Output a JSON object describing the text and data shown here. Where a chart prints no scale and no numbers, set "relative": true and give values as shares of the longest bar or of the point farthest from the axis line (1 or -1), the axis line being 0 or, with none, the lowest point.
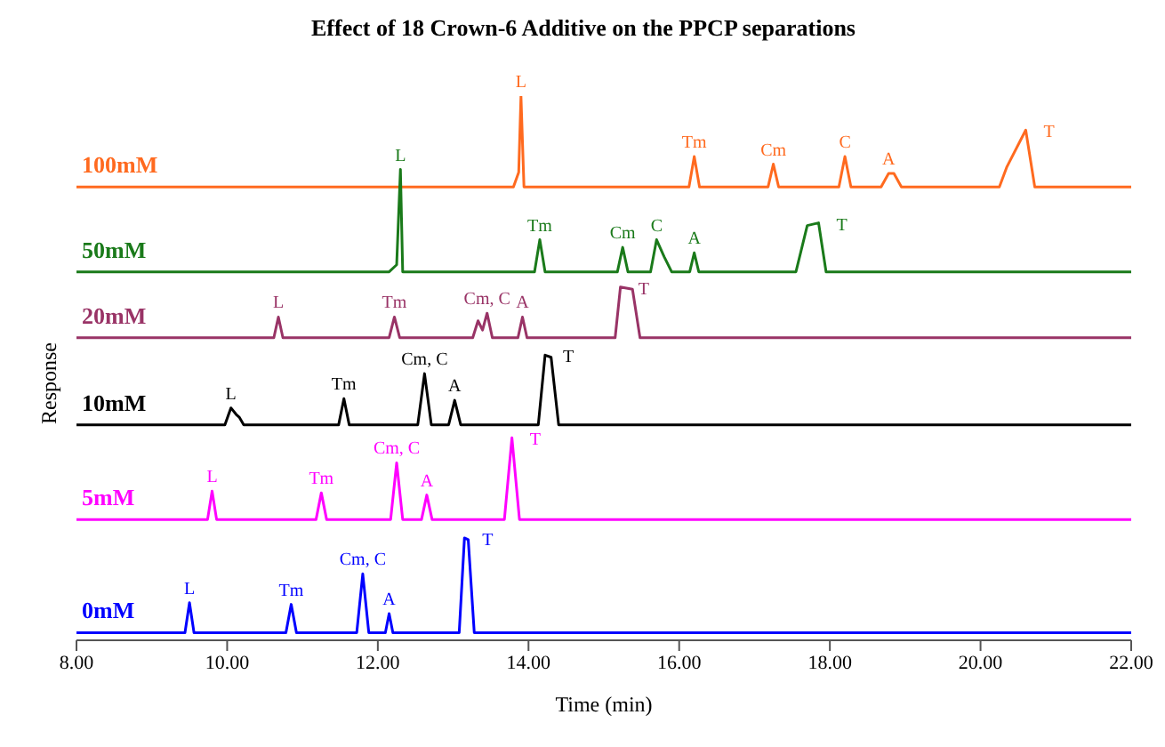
{
  "chart_data": {
    "type": "line",
    "title": "Effect of 18 Crown-6 Additive  on the PPCP separations",
    "xlabel": "Time (min)",
    "ylabel": "Response",
    "relative": true,
    "grid": false,
    "marker": "none",
    "line_style": "solid",
    "xlim": [
      8,
      22
    ],
    "xticks": [
      {
        "value": 8,
        "label": "8.00"
      },
      {
        "value": 10,
        "label": "10.00"
      },
      {
        "value": 12,
        "label": "12.00"
      },
      {
        "value": 14,
        "label": "14.00"
      },
      {
        "value": 16,
        "label": "16.00"
      },
      {
        "value": 18,
        "label": "18.00"
      },
      {
        "value": 20,
        "label": "20.00"
      },
      {
        "value": 22,
        "label": "22.00"
      }
    ],
    "series": [
      {
        "name": "100mM",
        "color": "#ff6a1f",
        "x": [
          8,
          13.8,
          13.87,
          13.9,
          13.94,
          16.13,
          16.2,
          16.27,
          17.18,
          17.25,
          17.32,
          18.12,
          18.2,
          18.28,
          18.68,
          18.78,
          18.85,
          18.95,
          20.25,
          20.35,
          20.6,
          20.72,
          22
        ],
        "values": [
          0.833,
          0.833,
          0.86,
          1,
          0.833,
          0.833,
          0.889,
          0.833,
          0.833,
          0.875,
          0.833,
          0.833,
          0.889,
          0.833,
          0.833,
          0.858,
          0.858,
          0.833,
          0.833,
          0.87,
          0.9375,
          0.833,
          0.833
        ]
      },
      {
        "name": "50mM",
        "color": "#1a7a1a",
        "x": [
          8,
          12.15,
          12.25,
          12.3,
          12.33,
          14.08,
          14.15,
          14.22,
          15.18,
          15.25,
          15.32,
          15.62,
          15.7,
          15.8,
          15.9,
          16.14,
          16.2,
          16.26,
          17.55,
          17.7,
          17.85,
          17.95,
          22
        ],
        "values": [
          0.677,
          0.677,
          0.69,
          0.865,
          0.677,
          0.677,
          0.736,
          0.677,
          0.677,
          0.722,
          0.677,
          0.677,
          0.736,
          0.705,
          0.677,
          0.677,
          0.712,
          0.677,
          0.677,
          0.762,
          0.767,
          0.677,
          0.677
        ]
      },
      {
        "name": "20mM",
        "color": "#993366",
        "x": [
          8,
          10.62,
          10.68,
          10.74,
          12.15,
          12.22,
          12.29,
          13.26,
          13.33,
          13.39,
          13.45,
          13.52,
          13.86,
          13.92,
          13.98,
          15.15,
          15.22,
          15.38,
          15.48,
          22
        ],
        "values": [
          0.556,
          0.556,
          0.594,
          0.556,
          0.556,
          0.594,
          0.556,
          0.556,
          0.587,
          0.57,
          0.601,
          0.556,
          0.556,
          0.594,
          0.556,
          0.556,
          0.649,
          0.645,
          0.556,
          0.556
        ]
      },
      {
        "name": "10mM",
        "color": "#000000",
        "x": [
          8,
          9.97,
          10.05,
          10.12,
          10.16,
          10.22,
          11.48,
          11.55,
          11.62,
          12.53,
          12.62,
          12.71,
          12.94,
          13.02,
          13.1,
          14.13,
          14.22,
          14.3,
          14.4,
          22
        ],
        "values": [
          0.396,
          0.396,
          0.427,
          0.415,
          0.41,
          0.396,
          0.396,
          0.444,
          0.396,
          0.396,
          0.49,
          0.396,
          0.396,
          0.441,
          0.396,
          0.396,
          0.524,
          0.52,
          0.396,
          0.396
        ]
      },
      {
        "name": "5mM",
        "color": "#ff00ff",
        "x": [
          8,
          9.74,
          9.8,
          9.86,
          11.18,
          11.25,
          11.32,
          12.17,
          12.25,
          12.33,
          12.58,
          12.65,
          12.72,
          13.68,
          13.78,
          13.88,
          22
        ],
        "values": [
          0.222,
          0.222,
          0.274,
          0.222,
          0.222,
          0.271,
          0.222,
          0.222,
          0.326,
          0.222,
          0.222,
          0.267,
          0.222,
          0.222,
          0.372,
          0.222,
          0.222
        ]
      },
      {
        "name": "0mM",
        "color": "#0000ff",
        "x": [
          8,
          9.44,
          9.5,
          9.56,
          10.78,
          10.85,
          10.92,
          11.72,
          11.8,
          11.88,
          12.1,
          12.15,
          12.2,
          13.08,
          13.15,
          13.2,
          13.28,
          22
        ],
        "values": [
          0.014,
          0.014,
          0.069,
          0.014,
          0.014,
          0.066,
          0.014,
          0.014,
          0.122,
          0.014,
          0.014,
          0.049,
          0.014,
          0.014,
          0.188,
          0.185,
          0.014,
          0.014
        ]
      }
    ],
    "annotations": [
      {
        "text": "L",
        "x": 13.9,
        "y": 1
      },
      {
        "text": "Tm",
        "x": 16.2,
        "y": 0.889
      },
      {
        "text": "Cm",
        "x": 17.25,
        "y": 0.875
      },
      {
        "text": "C",
        "x": 18.2,
        "y": 0.889
      },
      {
        "text": "A",
        "x": 18.78,
        "y": 0.858
      },
      {
        "text": "T",
        "x": 20.6,
        "y": 0.9375
      },
      {
        "text": "L",
        "x": 12.3,
        "y": 0.865
      },
      {
        "text": "Tm",
        "x": 14.15,
        "y": 0.736
      },
      {
        "text": "Cm",
        "x": 15.25,
        "y": 0.722
      },
      {
        "text": "C",
        "x": 15.7,
        "y": 0.736
      },
      {
        "text": "A",
        "x": 16.2,
        "y": 0.712
      },
      {
        "text": "T",
        "x": 17.85,
        "y": 0.767
      },
      {
        "text": "L",
        "x": 10.68,
        "y": 0.594
      },
      {
        "text": "Tm",
        "x": 12.22,
        "y": 0.594
      },
      {
        "text": "Cm, C",
        "x": 13.45,
        "y": 0.601
      },
      {
        "text": "A",
        "x": 13.92,
        "y": 0.594
      },
      {
        "text": "T",
        "x": 15.22,
        "y": 0.649
      },
      {
        "text": "L",
        "x": 10.05,
        "y": 0.427
      },
      {
        "text": "Tm",
        "x": 11.55,
        "y": 0.444
      },
      {
        "text": "Cm, C",
        "x": 12.62,
        "y": 0.49
      },
      {
        "text": "A",
        "x": 13.02,
        "y": 0.441
      },
      {
        "text": "T",
        "x": 14.22,
        "y": 0.524
      },
      {
        "text": "L",
        "x": 9.8,
        "y": 0.274
      },
      {
        "text": "Tm",
        "x": 11.25,
        "y": 0.271
      },
      {
        "text": "Cm, C",
        "x": 12.25,
        "y": 0.326
      },
      {
        "text": "A",
        "x": 12.65,
        "y": 0.267
      },
      {
        "text": "T",
        "x": 13.78,
        "y": 0.372
      },
      {
        "text": "L",
        "x": 9.5,
        "y": 0.069
      },
      {
        "text": "Tm",
        "x": 10.85,
        "y": 0.066
      },
      {
        "text": "Cm, C",
        "x": 11.8,
        "y": 0.122
      },
      {
        "text": "A",
        "x": 12.15,
        "y": 0.049
      },
      {
        "text": "T",
        "x": 13.15,
        "y": 0.188
      }
    ]
  }
}
